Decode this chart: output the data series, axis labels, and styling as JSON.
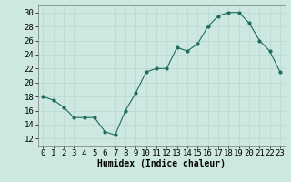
{
  "x": [
    0,
    1,
    2,
    3,
    4,
    5,
    6,
    7,
    8,
    9,
    10,
    11,
    12,
    13,
    14,
    15,
    16,
    17,
    18,
    19,
    20,
    21,
    22,
    23
  ],
  "y": [
    18,
    17.5,
    16.5,
    15,
    15,
    15,
    13,
    12.5,
    16,
    18.5,
    21.5,
    22,
    22,
    25,
    24.5,
    25.5,
    28,
    29.5,
    30,
    30,
    28.5,
    26,
    24.5,
    21.5
  ],
  "line_color": "#1e6b5e",
  "marker_color": "#1e6b5e",
  "bg_color": "#cce8e0",
  "grid_color": "#b8d8cf",
  "xlabel": "Humidex (Indice chaleur)",
  "ylim": [
    11,
    31
  ],
  "xlim": [
    -0.5,
    23.5
  ],
  "yticks": [
    12,
    14,
    16,
    18,
    20,
    22,
    24,
    26,
    28,
    30
  ],
  "xticks": [
    0,
    1,
    2,
    3,
    4,
    5,
    6,
    7,
    8,
    9,
    10,
    11,
    12,
    13,
    14,
    15,
    16,
    17,
    18,
    19,
    20,
    21,
    22,
    23
  ],
  "xlabel_fontsize": 7,
  "tick_fontsize": 6.5
}
